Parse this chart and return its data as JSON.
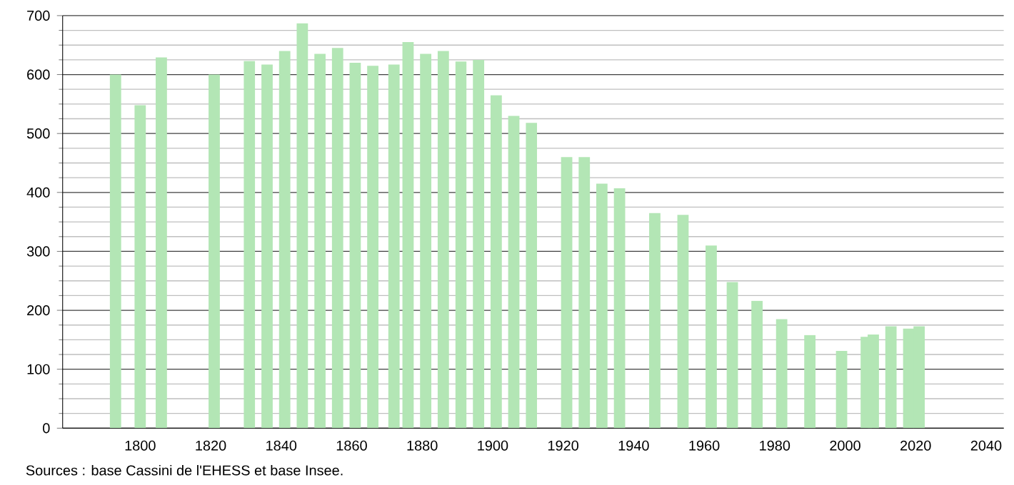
{
  "chart_data": {
    "type": "bar",
    "x": [
      1793,
      1800,
      1806,
      1821,
      1831,
      1836,
      1841,
      1846,
      1851,
      1856,
      1861,
      1866,
      1872,
      1876,
      1881,
      1886,
      1891,
      1896,
      1901,
      1906,
      1911,
      1921,
      1926,
      1931,
      1936,
      1946,
      1954,
      1962,
      1968,
      1975,
      1982,
      1990,
      1999,
      2006,
      2008,
      2013,
      2018,
      2021
    ],
    "values": [
      600,
      548,
      629,
      600,
      623,
      617,
      640,
      687,
      635,
      645,
      620,
      615,
      617,
      655,
      635,
      640,
      622,
      625,
      565,
      530,
      518,
      460,
      460,
      415,
      407,
      365,
      362,
      310,
      248,
      216,
      185,
      158,
      131,
      155,
      159,
      173,
      169,
      173
    ],
    "color": "#b3e6b5",
    "xlim": [
      1778,
      2045
    ],
    "ylim": [
      0,
      700
    ],
    "xticks": [
      1800,
      1820,
      1840,
      1860,
      1880,
      1900,
      1920,
      1940,
      1960,
      1980,
      2000,
      2020,
      2040
    ],
    "yticks": [
      0,
      100,
      200,
      300,
      400,
      500,
      600,
      700
    ],
    "grid": "y",
    "annotations": [
      "Sources : base Cassini de l'EHESS et base Insee."
    ]
  }
}
